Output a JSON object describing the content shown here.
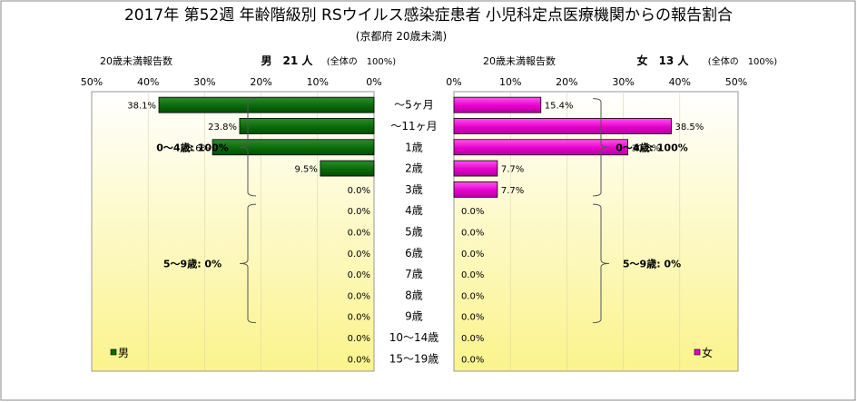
{
  "title": "2017年 第52週 年齢階級別 RSウイルス感染症患者 小児科定点医療機関からの報告割合",
  "subtitle": "(京都府 20歳未満)",
  "chart_data": [
    {
      "type": "bar",
      "orientation": "horizontal-reversed",
      "name": "男",
      "header_left": "20歳未満報告数",
      "header_right": "男　21 人",
      "header_note": "(全体の　100%)",
      "xlim": [
        0,
        50
      ],
      "x_ticks": [
        "50%",
        "40%",
        "30%",
        "20%",
        "10%",
        "0%"
      ],
      "categories": [
        "～5ヶ月",
        "～11ヶ月",
        "1歳",
        "2歳",
        "3歳",
        "4歳",
        "5歳",
        "6歳",
        "7歳",
        "8歳",
        "9歳",
        "10～14歳",
        "15～19歳"
      ],
      "values": [
        38.1,
        23.8,
        28.6,
        9.5,
        0.0,
        0.0,
        0.0,
        0.0,
        0.0,
        0.0,
        0.0,
        0.0,
        0.0
      ],
      "value_labels": [
        "38.1%",
        "23.8%",
        "28.6%",
        "9.5%",
        "0.0%",
        "0.0%",
        "0.0%",
        "0.0%",
        "0.0%",
        "0.0%",
        "0.0%",
        "0.0%",
        "0.0%"
      ],
      "color": "#0a6b0a",
      "legend": "男",
      "groups": [
        {
          "label": "0～4歳: 100%",
          "from": 0,
          "to": 4
        },
        {
          "label": "5～9歳: 0%",
          "from": 5,
          "to": 10
        }
      ]
    },
    {
      "type": "bar",
      "orientation": "horizontal",
      "name": "女",
      "header_left": "20歳未満報告数",
      "header_right": "女　13 人",
      "header_note": "(全体の　100%)",
      "xlim": [
        0,
        50
      ],
      "x_ticks": [
        "0%",
        "10%",
        "20%",
        "30%",
        "40%",
        "50%"
      ],
      "categories": [
        "～5ヶ月",
        "～11ヶ月",
        "1歳",
        "2歳",
        "3歳",
        "4歳",
        "5歳",
        "6歳",
        "7歳",
        "8歳",
        "9歳",
        "10～14歳",
        "15～19歳"
      ],
      "values": [
        15.4,
        38.5,
        30.8,
        7.7,
        7.7,
        0.0,
        0.0,
        0.0,
        0.0,
        0.0,
        0.0,
        0.0,
        0.0
      ],
      "value_labels": [
        "15.4%",
        "38.5%",
        "30.8%",
        "7.7%",
        "7.7%",
        "0.0%",
        "0.0%",
        "0.0%",
        "0.0%",
        "0.0%",
        "0.0%",
        "0.0%",
        "0.0%"
      ],
      "color": "#e600cc",
      "legend": "女",
      "groups": [
        {
          "label": "0～4歳: 100%",
          "from": 0,
          "to": 4
        },
        {
          "label": "5～9歳: 0%",
          "from": 5,
          "to": 10
        }
      ]
    }
  ]
}
